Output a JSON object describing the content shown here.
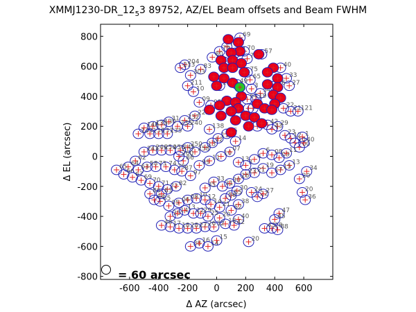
{
  "chart_data": {
    "type": "scatter",
    "title": "XMMJ1230-DR_12_5 3 89752, AZ/EL Beam offsets and Beam FWHM",
    "title_main": "XMMJ1230-DR_12",
    "title_sub": "5",
    "title_rest": "3 89752, AZ/EL Beam offsets and Beam FWHM",
    "xlabel": "Δ AZ (arcsec)",
    "ylabel": "Δ EL (arcsec)",
    "xlim": [
      -800,
      800
    ],
    "ylim": [
      -820,
      880
    ],
    "xticks": [
      -600,
      -400,
      -200,
      0,
      200,
      400,
      600
    ],
    "yticks": [
      -800,
      -600,
      -400,
      -200,
      0,
      200,
      400,
      600,
      800
    ],
    "grid": false,
    "scale_label": "= 60 arcsec",
    "beam_fwhm_arcsec": 60,
    "colors": {
      "beam_outline": "#1f1fb4",
      "center_mark": "#e01e1e",
      "filled_beam": "#e8001a",
      "highlight_beam": "#27c52a"
    },
    "beams_filled": [
      {
        "x": 80,
        "y": 780
      },
      {
        "x": 150,
        "y": 760
      },
      {
        "x": 160,
        "y": 700
      },
      {
        "x": 100,
        "y": 690
      },
      {
        "x": 290,
        "y": 680
      },
      {
        "x": 30,
        "y": 640
      },
      {
        "x": 110,
        "y": 640
      },
      {
        "x": 170,
        "y": 620
      },
      {
        "x": 50,
        "y": 590
      },
      {
        "x": 110,
        "y": 590
      },
      {
        "x": 190,
        "y": 560
      },
      {
        "x": 390,
        "y": 590
      },
      {
        "x": 350,
        "y": 560
      },
      {
        "x": 420,
        "y": 520
      },
      {
        "x": -20,
        "y": 530
      },
      {
        "x": 50,
        "y": 520
      },
      {
        "x": 110,
        "y": 490
      },
      {
        "x": 0,
        "y": 470
      },
      {
        "x": 350,
        "y": 480
      },
      {
        "x": 420,
        "y": 460
      },
      {
        "x": 390,
        "y": 410
      },
      {
        "x": 440,
        "y": 390
      },
      {
        "x": 170,
        "y": 400
      },
      {
        "x": 70,
        "y": 370
      },
      {
        "x": 130,
        "y": 360
      },
      {
        "x": 280,
        "y": 350
      },
      {
        "x": 400,
        "y": 350
      },
      {
        "x": 20,
        "y": 340
      },
      {
        "x": -50,
        "y": 310
      },
      {
        "x": 150,
        "y": 320
      },
      {
        "x": 330,
        "y": 320
      },
      {
        "x": 100,
        "y": 300
      },
      {
        "x": 380,
        "y": 310
      },
      {
        "x": 30,
        "y": 270
      },
      {
        "x": 200,
        "y": 270
      },
      {
        "x": 260,
        "y": 260
      },
      {
        "x": 130,
        "y": 240
      },
      {
        "x": 310,
        "y": 220
      },
      {
        "x": 220,
        "y": 200
      },
      {
        "x": 100,
        "y": 160
      },
      {
        "x": 160,
        "y": 460
      }
    ],
    "beam_highlight": {
      "x": 160,
      "y": 460
    },
    "beams_open": [
      {
        "x": 160,
        "y": 790,
        "id": "69"
      },
      {
        "x": 190,
        "y": 700,
        "id": "70"
      },
      {
        "x": 70,
        "y": 730,
        "id": "78"
      },
      {
        "x": 130,
        "y": 690,
        "id": "71"
      },
      {
        "x": 20,
        "y": 700,
        "id": "79"
      },
      {
        "x": -30,
        "y": 660,
        "id": "80"
      },
      {
        "x": 210,
        "y": 650,
        "id": "72"
      },
      {
        "x": 310,
        "y": 680,
        "id": "57"
      },
      {
        "x": 440,
        "y": 590,
        "id": "40"
      },
      {
        "x": 480,
        "y": 520,
        "id": "33"
      },
      {
        "x": 500,
        "y": 470,
        "id": "27"
      },
      {
        "x": 400,
        "y": 470,
        "id": "46"
      },
      {
        "x": 210,
        "y": 560,
        "id": "75"
      },
      {
        "x": 230,
        "y": 510,
        "id": "65"
      },
      {
        "x": -110,
        "y": 580,
        "id": "83"
      },
      {
        "x": -220,
        "y": 610,
        "id": "204"
      },
      {
        "x": -250,
        "y": 590,
        "id": "213"
      },
      {
        "x": -180,
        "y": 540,
        "id": "303"
      },
      {
        "x": -200,
        "y": 470,
        "id": "211"
      },
      {
        "x": -160,
        "y": 430,
        "id": "10"
      },
      {
        "x": -120,
        "y": 360,
        "id": "09"
      },
      {
        "x": -40,
        "y": 340,
        "id": "95"
      },
      {
        "x": 210,
        "y": 380,
        "id": "64"
      },
      {
        "x": 300,
        "y": 420,
        "id": "54"
      },
      {
        "x": 250,
        "y": 320,
        "id": "63"
      },
      {
        "x": 460,
        "y": 320,
        "id": "22"
      },
      {
        "x": 510,
        "y": 300,
        "id": "21"
      },
      {
        "x": 560,
        "y": 300,
        "id": "121"
      },
      {
        "x": 280,
        "y": 200,
        "id": "05"
      },
      {
        "x": 350,
        "y": 210,
        "id": "42"
      },
      {
        "x": 420,
        "y": 200,
        "id": "29"
      },
      {
        "x": 380,
        "y": 180,
        "id": "43"
      },
      {
        "x": 470,
        "y": 140,
        "id": "23"
      },
      {
        "x": 510,
        "y": 120,
        "id": "12"
      },
      {
        "x": 540,
        "y": 90,
        "id": "10"
      },
      {
        "x": 570,
        "y": 60,
        "id": "00"
      },
      {
        "x": 600,
        "y": 90,
        "id": "40"
      },
      {
        "x": 590,
        "y": 130,
        "id": "1"
      },
      {
        "x": -150,
        "y": 270,
        "id": "225"
      },
      {
        "x": -220,
        "y": 240,
        "id": "232"
      },
      {
        "x": -200,
        "y": 200,
        "id": "240"
      },
      {
        "x": -270,
        "y": 200,
        "id": "235"
      },
      {
        "x": -330,
        "y": 230,
        "id": "31"
      },
      {
        "x": -380,
        "y": 210,
        "id": "130"
      },
      {
        "x": -440,
        "y": 200,
        "id": "135"
      },
      {
        "x": -500,
        "y": 190,
        "id": "140"
      },
      {
        "x": -540,
        "y": 150,
        "id": "143"
      },
      {
        "x": -460,
        "y": 150,
        "id": "136"
      },
      {
        "x": -400,
        "y": 150,
        "id": "137"
      },
      {
        "x": -340,
        "y": 150,
        "id": "135"
      },
      {
        "x": -50,
        "y": 180,
        "id": "138"
      },
      {
        "x": 10,
        "y": 120,
        "id": "11"
      },
      {
        "x": 70,
        "y": 150,
        "id": "15"
      },
      {
        "x": 130,
        "y": 100,
        "id": "14"
      },
      {
        "x": -30,
        "y": 90,
        "id": "12"
      },
      {
        "x": -80,
        "y": 60,
        "id": "13"
      },
      {
        "x": -150,
        "y": 30,
        "id": "258"
      },
      {
        "x": -200,
        "y": 60,
        "id": "250"
      },
      {
        "x": -250,
        "y": 40,
        "id": "245"
      },
      {
        "x": -320,
        "y": 40,
        "id": "250"
      },
      {
        "x": -380,
        "y": 40,
        "id": "254"
      },
      {
        "x": -440,
        "y": 40,
        "id": "246"
      },
      {
        "x": -500,
        "y": 30,
        "id": "241"
      },
      {
        "x": -560,
        "y": -30,
        "id": "62"
      },
      {
        "x": -610,
        "y": -70,
        "id": "64"
      },
      {
        "x": -690,
        "y": -90,
        "id": "65"
      },
      {
        "x": -640,
        "y": -120,
        "id": "66"
      },
      {
        "x": -580,
        "y": -140,
        "id": "67"
      },
      {
        "x": -520,
        "y": -160,
        "id": "69"
      },
      {
        "x": -460,
        "y": -180,
        "id": "70"
      },
      {
        "x": -400,
        "y": -200,
        "id": "71"
      },
      {
        "x": -340,
        "y": -220,
        "id": "72"
      },
      {
        "x": -280,
        "y": -200,
        "id": "82"
      },
      {
        "x": -230,
        "y": -30,
        "id": "86"
      },
      {
        "x": -290,
        "y": -90,
        "id": "75"
      },
      {
        "x": -350,
        "y": -70,
        "id": "74"
      },
      {
        "x": -420,
        "y": -70,
        "id": "73"
      },
      {
        "x": -480,
        "y": -70,
        "id": "58"
      },
      {
        "x": -540,
        "y": -90,
        "id": "63"
      },
      {
        "x": -240,
        "y": -100,
        "id": "87"
      },
      {
        "x": -260,
        "y": 0,
        "id": "260"
      },
      {
        "x": -180,
        "y": -130,
        "id": "97"
      },
      {
        "x": -120,
        "y": -60,
        "id": "99"
      },
      {
        "x": -50,
        "y": -30,
        "id": "11"
      },
      {
        "x": 30,
        "y": 0,
        "id": "10"
      },
      {
        "x": 90,
        "y": 30,
        "id": "07"
      },
      {
        "x": 150,
        "y": -40,
        "id": "13"
      },
      {
        "x": 200,
        "y": -60,
        "id": "3"
      },
      {
        "x": 260,
        "y": -20,
        "id": "4"
      },
      {
        "x": 320,
        "y": 20,
        "id": "6"
      },
      {
        "x": 380,
        "y": 10,
        "id": "08"
      },
      {
        "x": 430,
        "y": -10,
        "id": "09"
      },
      {
        "x": 480,
        "y": 20,
        "id": "11"
      },
      {
        "x": 500,
        "y": -60,
        "id": "13"
      },
      {
        "x": 440,
        "y": -90,
        "id": "15"
      },
      {
        "x": 380,
        "y": -110,
        "id": "17"
      },
      {
        "x": 320,
        "y": -80,
        "id": "19"
      },
      {
        "x": 260,
        "y": -110,
        "id": "21"
      },
      {
        "x": 200,
        "y": -120,
        "id": "23"
      },
      {
        "x": 150,
        "y": -150,
        "id": "26"
      },
      {
        "x": 90,
        "y": -180,
        "id": "30"
      },
      {
        "x": 40,
        "y": -200,
        "id": "31"
      },
      {
        "x": -20,
        "y": -170,
        "id": "33"
      },
      {
        "x": -80,
        "y": -210,
        "id": "35"
      },
      {
        "x": 620,
        "y": -100,
        "id": "34"
      },
      {
        "x": 570,
        "y": -150,
        "id": "20"
      },
      {
        "x": 590,
        "y": -240,
        "id": "20"
      },
      {
        "x": 610,
        "y": -290,
        "id": "36"
      },
      {
        "x": 240,
        "y": -240,
        "id": "24"
      },
      {
        "x": 280,
        "y": -270,
        "id": "22"
      },
      {
        "x": 320,
        "y": -250,
        "id": "27"
      },
      {
        "x": 140,
        "y": -230,
        "id": "30"
      },
      {
        "x": 100,
        "y": -260,
        "id": "55"
      },
      {
        "x": 60,
        "y": -280,
        "id": "56"
      },
      {
        "x": 150,
        "y": -320,
        "id": "38"
      },
      {
        "x": 100,
        "y": -360,
        "id": "52"
      },
      {
        "x": 150,
        "y": -420,
        "id": "40"
      },
      {
        "x": 120,
        "y": -460,
        "id": "42"
      },
      {
        "x": 60,
        "y": -450,
        "id": "18"
      },
      {
        "x": 20,
        "y": -410,
        "id": "20"
      },
      {
        "x": 20,
        "y": -340,
        "id": "21"
      },
      {
        "x": -40,
        "y": -320,
        "id": "14"
      },
      {
        "x": -80,
        "y": -290,
        "id": "12"
      },
      {
        "x": -140,
        "y": -280,
        "id": "10"
      },
      {
        "x": -200,
        "y": -290,
        "id": "08"
      },
      {
        "x": -260,
        "y": -310,
        "id": "06"
      },
      {
        "x": -330,
        "y": -330,
        "id": "05"
      },
      {
        "x": -390,
        "y": -300,
        "id": "85"
      },
      {
        "x": -430,
        "y": -290,
        "id": "84"
      },
      {
        "x": -460,
        "y": -250,
        "id": "86"
      },
      {
        "x": -380,
        "y": -250,
        "id": "83"
      },
      {
        "x": -320,
        "y": -400,
        "id": "35"
      },
      {
        "x": -270,
        "y": -380,
        "id": "14"
      },
      {
        "x": -220,
        "y": -360,
        "id": "13"
      },
      {
        "x": -160,
        "y": -380,
        "id": "22"
      },
      {
        "x": -110,
        "y": -380,
        "id": "29"
      },
      {
        "x": -60,
        "y": -400,
        "id": "25"
      },
      {
        "x": -20,
        "y": -470,
        "id": "32"
      },
      {
        "x": -80,
        "y": -470,
        "id": "26"
      },
      {
        "x": -140,
        "y": -480,
        "id": "27"
      },
      {
        "x": -200,
        "y": -480,
        "id": "28"
      },
      {
        "x": -260,
        "y": -480,
        "id": "18"
      },
      {
        "x": -320,
        "y": -470,
        "id": "17"
      },
      {
        "x": -380,
        "y": -460,
        "id": "48"
      },
      {
        "x": -180,
        "y": -600,
        "id": "38"
      },
      {
        "x": -120,
        "y": -580,
        "id": "16"
      },
      {
        "x": -60,
        "y": -600,
        "id": "14"
      },
      {
        "x": 0,
        "y": -560,
        "id": "15"
      },
      {
        "x": 220,
        "y": -570,
        "id": "20"
      },
      {
        "x": 380,
        "y": -480,
        "id": "28"
      },
      {
        "x": 420,
        "y": -490,
        "id": "88"
      },
      {
        "x": 430,
        "y": -380,
        "id": "47"
      },
      {
        "x": 330,
        "y": -480,
        "id": "43"
      },
      {
        "x": 400,
        "y": -420,
        "id": "45"
      },
      {
        "x": 50,
        "y": 630,
        "id": "12"
      },
      {
        "x": 240,
        "y": 450,
        "id": "3"
      },
      {
        "x": 20,
        "y": 470,
        "id": "10"
      },
      {
        "x": 140,
        "y": 480,
        "id": "49"
      },
      {
        "x": 270,
        "y": 380,
        "id": "19"
      },
      {
        "x": 220,
        "y": 320,
        "id": "07"
      }
    ]
  }
}
